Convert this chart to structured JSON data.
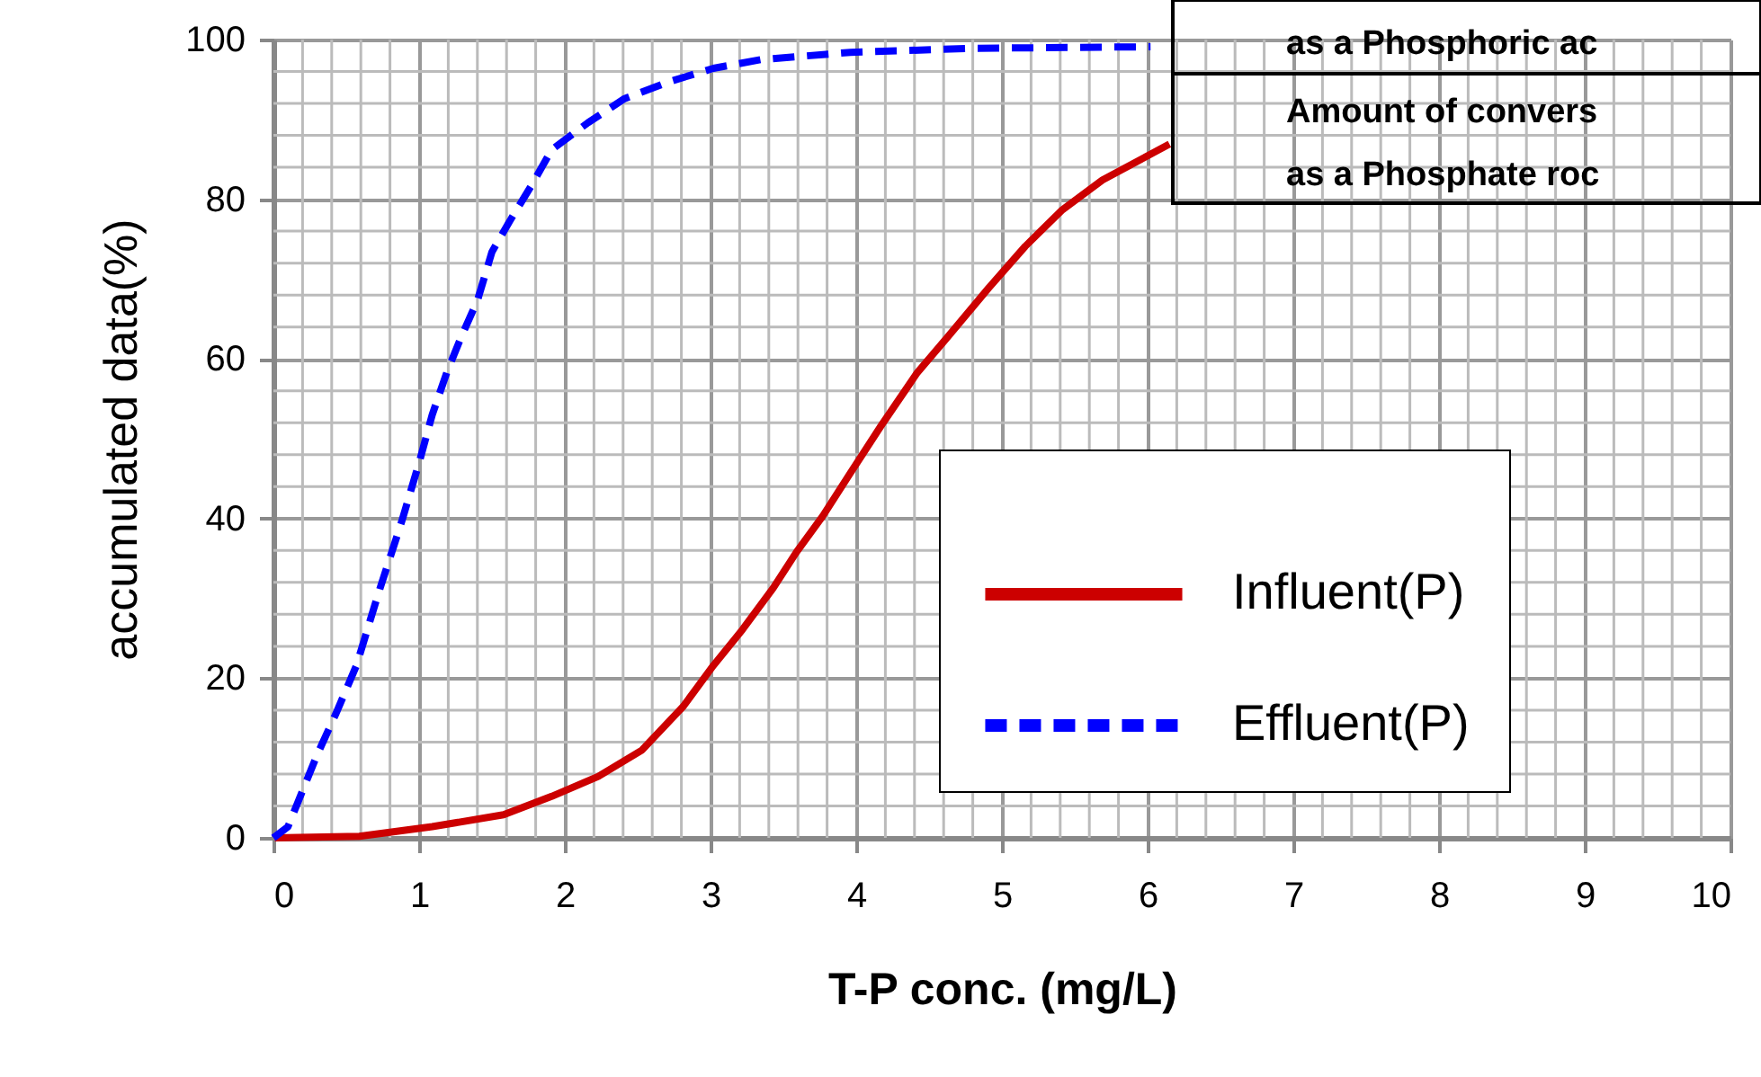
{
  "chart_data": {
    "type": "line",
    "xlabel": "T-P conc. (mg/L)",
    "ylabel": "accumulated data(%)",
    "xlim": [
      0,
      10
    ],
    "xticks": [
      0,
      1,
      2,
      3,
      4,
      5,
      6,
      7,
      8,
      9,
      10
    ],
    "ylim": [
      0,
      100
    ],
    "yticks": [
      0,
      20,
      40,
      60,
      80,
      100
    ],
    "grid": true,
    "legend": "right",
    "marker": "none",
    "annotations": [
      "as a Phosphoric ac",
      "Amount of convers",
      "as a Phosphate roc"
    ],
    "series": [
      {
        "name": "Influent(P)",
        "color": "#cc0000",
        "line_style": "solid",
        "x": [
          0.01,
          0.59,
          1.09,
          1.58,
          1.91,
          2.23,
          2.53,
          2.81,
          3.02,
          3.22,
          3.43,
          3.59,
          3.77,
          3.96,
          4.17,
          4.42,
          4.63,
          4.91,
          5.16,
          5.41,
          5.69,
          6.15
        ],
        "values": [
          0,
          0.2,
          1.4,
          2.9,
          5.2,
          7.7,
          11,
          16.4,
          21.6,
          26.1,
          31.3,
          35.8,
          40.3,
          45.7,
          51.6,
          58.3,
          62.8,
          68.9,
          74.1,
          78.6,
          82.4,
          86.9
        ]
      },
      {
        "name": "Effluent(P)",
        "color": "#0000ff",
        "line_style": "dashed",
        "x": [
          0,
          0.1,
          0.2,
          0.3,
          0.43,
          0.57,
          0.72,
          0.88,
          1.0,
          1.09,
          1.19,
          1.29,
          1.4,
          1.5,
          1.62,
          1.77,
          1.91,
          2.16,
          2.41,
          2.73,
          3.02,
          3.35,
          3.96,
          4.79,
          6.02
        ],
        "values": [
          0,
          1.4,
          5.9,
          10.4,
          15.6,
          21.6,
          30.6,
          39.6,
          47,
          53,
          58.3,
          62.8,
          67.3,
          73.4,
          77.2,
          81.7,
          86.2,
          89.6,
          92.6,
          94.8,
          96.4,
          97.5,
          98.4,
          98.9,
          99.1
        ]
      }
    ]
  }
}
